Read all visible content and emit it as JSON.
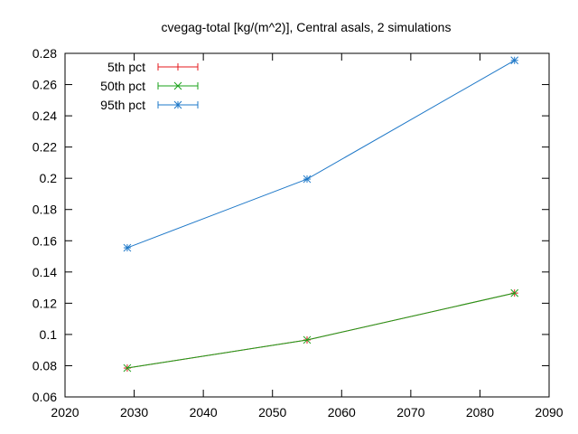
{
  "chart_data": {
    "type": "line",
    "title": "cvegag-total [kg/(m^2)], Central asals, 2 simulations",
    "xlabel": "",
    "ylabel": "",
    "xlim": [
      2020,
      2090
    ],
    "ylim": [
      0.06,
      0.28
    ],
    "x_ticks": [
      "2020",
      "2030",
      "2040",
      "2050",
      "2060",
      "2070",
      "2080",
      "2090"
    ],
    "y_ticks": [
      "0.06",
      "0.08",
      "0.1",
      "0.12",
      "0.14",
      "0.16",
      "0.18",
      "0.2",
      "0.22",
      "0.24",
      "0.26",
      "0.28"
    ],
    "grid": false,
    "legend_position": "top-left",
    "x": [
      2029,
      2055,
      2085
    ],
    "series": [
      {
        "name": "5th pct",
        "color": "#e41a1c",
        "marker": "plus",
        "values": [
          0.0785,
          0.0965,
          0.1265
        ]
      },
      {
        "name": "50th pct",
        "color": "#1aa01a",
        "marker": "cross",
        "values": [
          0.0785,
          0.0965,
          0.1265
        ]
      },
      {
        "name": "95th pct",
        "color": "#1e78c8",
        "marker": "star",
        "values": [
          0.1555,
          0.1995,
          0.2755
        ]
      }
    ]
  }
}
